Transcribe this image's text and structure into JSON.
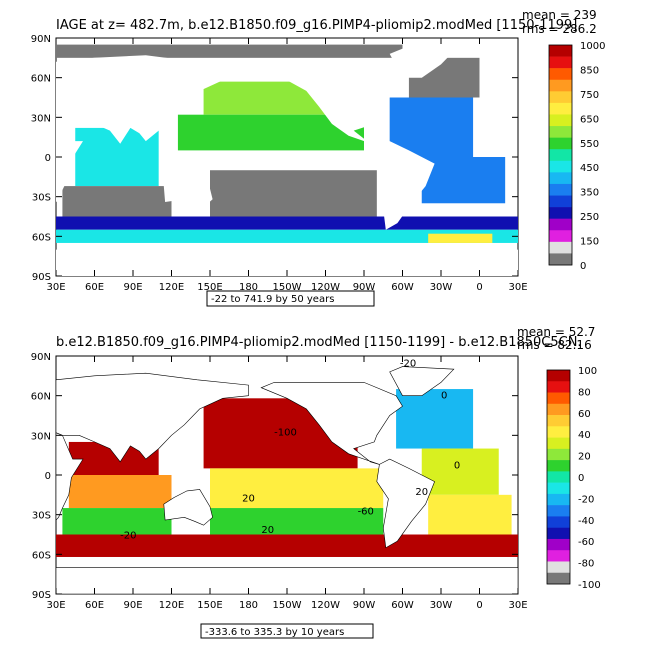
{
  "chart_data": [
    {
      "type": "heatmap",
      "title": "IAGE at z= 482.7m, b.e12.B1850.f09_g16.PIMP4-pliomip2.modMed [1150-1199]",
      "stats": [
        "mean = 239",
        "rms = 286.2"
      ],
      "range_label": "-22 to 741.9 by 50 years",
      "lat_ticks": [
        "90N",
        "60N",
        "30N",
        "0",
        "30S",
        "60S",
        "90S"
      ],
      "lon_ticks": [
        "30E",
        "60E",
        "90E",
        "120E",
        "150E",
        "180",
        "150W",
        "120W",
        "90W",
        "60W",
        "30W",
        "0",
        "30E"
      ],
      "xlim": [
        30,
        390
      ],
      "ylim": [
        -90,
        90
      ],
      "colorbar": {
        "labels": [
          "1000",
          "850",
          "750",
          "650",
          "550",
          "450",
          "350",
          "250",
          "150",
          "0"
        ],
        "colors": [
          "#b50000",
          "#e61010",
          "#ff5a00",
          "#ff9a20",
          "#ffcc33",
          "#ffee40",
          "#d8f020",
          "#8ee83a",
          "#2ed22e",
          "#12e6a6",
          "#1ae6e6",
          "#18b8f2",
          "#1a7ef0",
          "#1040d8",
          "#1010b0",
          "#a000c8",
          "#e020e0",
          "#e0e0e0",
          "#787878"
        ]
      },
      "regions": [
        {
          "name": "north-pacific-upper",
          "lon": [
            145,
            245
          ],
          "lat": [
            32,
            57
          ],
          "value": 580
        },
        {
          "name": "north-pacific-lower",
          "lon": [
            125,
            270
          ],
          "lat": [
            5,
            32
          ],
          "value": 520
        },
        {
          "name": "tropical-indian",
          "lon": [
            45,
            110
          ],
          "lat": [
            -22,
            22
          ],
          "value": 420
        },
        {
          "name": "south-indian",
          "lon": [
            35,
            120
          ],
          "lat": [
            -45,
            -22
          ],
          "value": -10
        },
        {
          "name": "south-pacific",
          "lon": [
            150,
            280
          ],
          "lat": [
            -45,
            -10
          ],
          "value": -10
        },
        {
          "name": "atlantic-south",
          "lon": [
            315,
            380
          ],
          "lat": [
            -35,
            0
          ],
          "value": 280
        },
        {
          "name": "atlantic-north",
          "lon": [
            290,
            355
          ],
          "lat": [
            0,
            45
          ],
          "value": 330
        },
        {
          "name": "north-atlantic-high",
          "lon": [
            305,
            360
          ],
          "lat": [
            45,
            75
          ],
          "value": -10
        },
        {
          "name": "arctic",
          "lon": [
            30,
            300
          ],
          "lat": [
            75,
            85
          ],
          "value": -10
        },
        {
          "name": "southern-ocean-upper",
          "lon": [
            30,
            390
          ],
          "lat": [
            -55,
            -45
          ],
          "value": 180
        },
        {
          "name": "southern-ocean-lower",
          "lon": [
            30,
            390
          ],
          "lat": [
            -65,
            -55
          ],
          "value": 420
        },
        {
          "name": "weddell",
          "lon": [
            320,
            370
          ],
          "lat": [
            -65,
            -58
          ],
          "value": 720
        }
      ]
    },
    {
      "type": "heatmap",
      "title": "b.e12.B1850.f09_g16.PIMP4-pliomip2.modMed [1150-1199] - b.e12.B1850C5CN.",
      "stats": [
        "mean = 52.7",
        "rms = 82.16"
      ],
      "range_label": "-333.6 to 335.3 by 10 years",
      "lat_ticks": [
        "90N",
        "60N",
        "30N",
        "0",
        "30S",
        "60S",
        "90S"
      ],
      "lon_ticks": [
        "30E",
        "60E",
        "90E",
        "120E",
        "150E",
        "180",
        "150W",
        "120W",
        "90W",
        "60W",
        "30W",
        "0",
        "30E"
      ],
      "xlim": [
        30,
        390
      ],
      "ylim": [
        -90,
        90
      ],
      "colorbar": {
        "labels": [
          "100",
          "80",
          "60",
          "40",
          "20",
          "0",
          "-20",
          "-40",
          "-60",
          "-80",
          "-100"
        ],
        "colors": [
          "#b50000",
          "#e61010",
          "#ff5a00",
          "#ff9a20",
          "#ffcc33",
          "#ffee40",
          "#d8f020",
          "#8ee83a",
          "#2ed22e",
          "#12e6a6",
          "#1ae6e6",
          "#18b8f2",
          "#1a7ef0",
          "#1040d8",
          "#1010b0",
          "#a000c8",
          "#e020e0",
          "#e0e0e0",
          "#787878"
        ]
      },
      "contour_labels": [
        "-20",
        "0",
        "-100",
        "-60",
        "20",
        "-20",
        "20",
        "20",
        "0"
      ],
      "regions": [
        {
          "name": "north-pacific",
          "lon": [
            145,
            265
          ],
          "lat": [
            5,
            58
          ],
          "value": 100
        },
        {
          "name": "indian-north",
          "lon": [
            40,
            110
          ],
          "lat": [
            0,
            25
          ],
          "value": 100
        },
        {
          "name": "indian-mid",
          "lon": [
            40,
            120
          ],
          "lat": [
            -25,
            0
          ],
          "value": 60
        },
        {
          "name": "indian-south",
          "lon": [
            35,
            120
          ],
          "lat": [
            -45,
            -25
          ],
          "value": 10
        },
        {
          "name": "tropical-pacific",
          "lon": [
            150,
            285
          ],
          "lat": [
            -25,
            5
          ],
          "value": 40
        },
        {
          "name": "south-pacific",
          "lon": [
            150,
            285
          ],
          "lat": [
            -45,
            -25
          ],
          "value": 10
        },
        {
          "name": "atlantic-north",
          "lon": [
            295,
            355
          ],
          "lat": [
            20,
            65
          ],
          "value": -20
        },
        {
          "name": "atlantic-tropical",
          "lon": [
            315,
            375
          ],
          "lat": [
            -15,
            20
          ],
          "value": 35
        },
        {
          "name": "atlantic-south",
          "lon": [
            320,
            385
          ],
          "lat": [
            -45,
            -15
          ],
          "value": 40
        },
        {
          "name": "southern-ocean",
          "lon": [
            30,
            390
          ],
          "lat": [
            -62,
            -45
          ],
          "value": 100
        }
      ]
    }
  ]
}
